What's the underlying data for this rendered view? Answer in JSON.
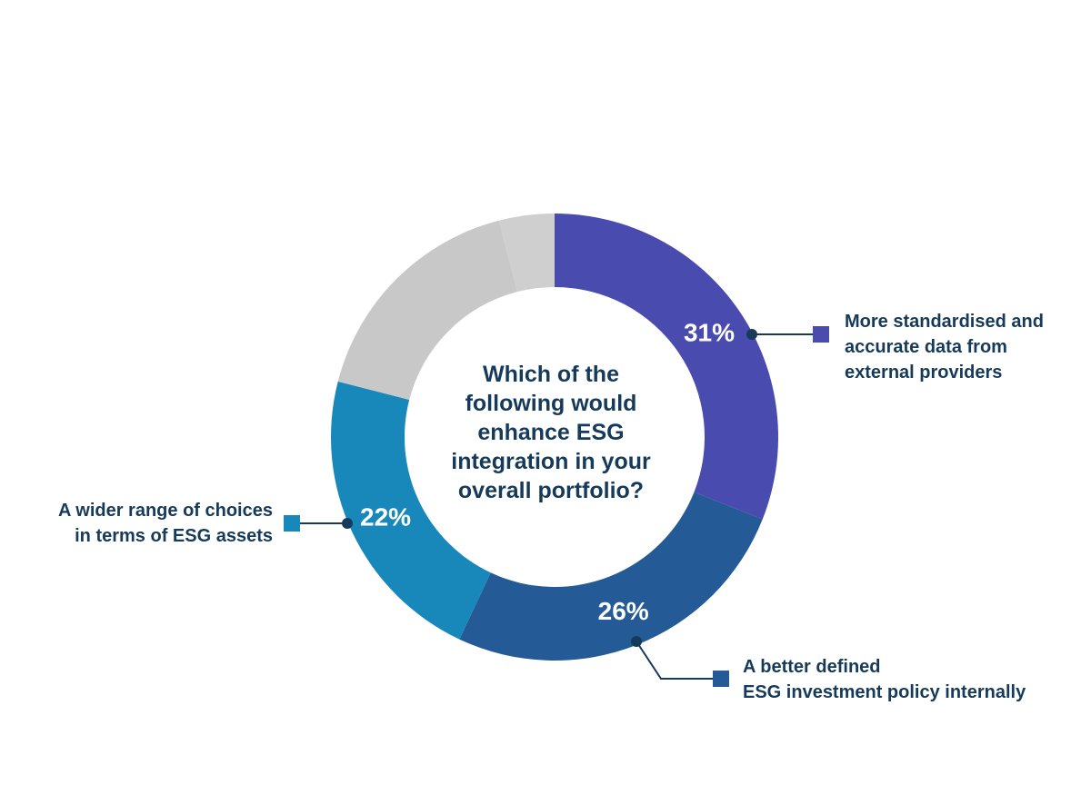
{
  "chart_data": {
    "type": "pie",
    "title": "Which of the following would enhance ESG integration in your overall portfolio?",
    "title_lines": [
      "Which of the",
      "following would",
      "enhance ESG",
      "integration in your",
      "overall portfolio?"
    ],
    "slices": [
      {
        "value": 31,
        "label": "31%",
        "color": "#4a4baf",
        "category_lines": [
          "More standardised and",
          "accurate data from",
          "external providers"
        ]
      },
      {
        "value": 26,
        "label": "26%",
        "color": "#245b97",
        "category_lines": [
          "A better defined",
          "ESG investment policy internally"
        ]
      },
      {
        "value": 22,
        "label": "22%",
        "color": "#1888ba",
        "category_lines": [
          "A wider range of choices",
          "in terms of ESG assets"
        ]
      },
      {
        "value": 17,
        "label": "",
        "color": "#c8c8c8",
        "category_lines": []
      },
      {
        "value": 4,
        "label": "",
        "color": "#cfcfcf",
        "category_lines": []
      }
    ],
    "connector_color": "#163a5a"
  }
}
